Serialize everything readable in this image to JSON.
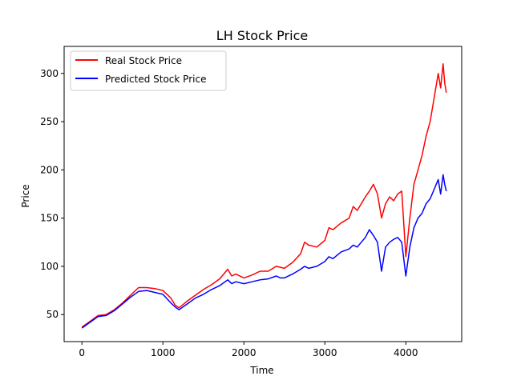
{
  "chart_data": {
    "type": "line",
    "title": "LH Stock Price",
    "xlabel": "Time",
    "ylabel": "Price",
    "xlim": [
      -220,
      4690
    ],
    "ylim": [
      22,
      328
    ],
    "xticks": [
      0,
      1000,
      2000,
      3000,
      4000
    ],
    "yticks": [
      50,
      100,
      150,
      200,
      250,
      300
    ],
    "grid": false,
    "legend_position": "top-left",
    "series": [
      {
        "name": "Real Stock Price",
        "color": "#ff0000",
        "points": [
          [
            0,
            37
          ],
          [
            100,
            43
          ],
          [
            200,
            49
          ],
          [
            300,
            50
          ],
          [
            400,
            55
          ],
          [
            500,
            62
          ],
          [
            600,
            70
          ],
          [
            700,
            78
          ],
          [
            800,
            78
          ],
          [
            900,
            77
          ],
          [
            1000,
            75
          ],
          [
            1100,
            67
          ],
          [
            1150,
            60
          ],
          [
            1200,
            57
          ],
          [
            1300,
            64
          ],
          [
            1400,
            70
          ],
          [
            1500,
            76
          ],
          [
            1600,
            81
          ],
          [
            1700,
            87
          ],
          [
            1800,
            97
          ],
          [
            1850,
            90
          ],
          [
            1900,
            92
          ],
          [
            2000,
            88
          ],
          [
            2100,
            91
          ],
          [
            2200,
            95
          ],
          [
            2300,
            95
          ],
          [
            2400,
            100
          ],
          [
            2450,
            99
          ],
          [
            2500,
            98
          ],
          [
            2600,
            104
          ],
          [
            2700,
            113
          ],
          [
            2750,
            125
          ],
          [
            2800,
            122
          ],
          [
            2900,
            120
          ],
          [
            3000,
            127
          ],
          [
            3050,
            140
          ],
          [
            3100,
            138
          ],
          [
            3200,
            145
          ],
          [
            3300,
            150
          ],
          [
            3350,
            162
          ],
          [
            3400,
            158
          ],
          [
            3450,
            165
          ],
          [
            3500,
            172
          ],
          [
            3550,
            178
          ],
          [
            3600,
            185
          ],
          [
            3650,
            175
          ],
          [
            3700,
            150
          ],
          [
            3750,
            165
          ],
          [
            3800,
            172
          ],
          [
            3850,
            168
          ],
          [
            3900,
            175
          ],
          [
            3950,
            178
          ],
          [
            4000,
            110
          ],
          [
            4050,
            150
          ],
          [
            4100,
            185
          ],
          [
            4150,
            200
          ],
          [
            4200,
            215
          ],
          [
            4250,
            235
          ],
          [
            4300,
            250
          ],
          [
            4350,
            275
          ],
          [
            4400,
            300
          ],
          [
            4430,
            285
          ],
          [
            4460,
            310
          ],
          [
            4480,
            290
          ],
          [
            4500,
            280
          ]
        ]
      },
      {
        "name": "Predicted Stock Price",
        "color": "#0000ff",
        "points": [
          [
            0,
            36
          ],
          [
            100,
            42
          ],
          [
            200,
            48
          ],
          [
            300,
            49
          ],
          [
            400,
            54
          ],
          [
            500,
            61
          ],
          [
            600,
            68
          ],
          [
            700,
            74
          ],
          [
            800,
            75
          ],
          [
            900,
            73
          ],
          [
            1000,
            71
          ],
          [
            1100,
            62
          ],
          [
            1150,
            58
          ],
          [
            1200,
            55
          ],
          [
            1300,
            61
          ],
          [
            1400,
            67
          ],
          [
            1500,
            71
          ],
          [
            1600,
            76
          ],
          [
            1700,
            80
          ],
          [
            1800,
            86
          ],
          [
            1850,
            82
          ],
          [
            1900,
            84
          ],
          [
            2000,
            82
          ],
          [
            2100,
            84
          ],
          [
            2200,
            86
          ],
          [
            2300,
            87
          ],
          [
            2400,
            90
          ],
          [
            2450,
            88
          ],
          [
            2500,
            88
          ],
          [
            2600,
            92
          ],
          [
            2700,
            97
          ],
          [
            2750,
            100
          ],
          [
            2800,
            98
          ],
          [
            2900,
            100
          ],
          [
            3000,
            105
          ],
          [
            3050,
            110
          ],
          [
            3100,
            108
          ],
          [
            3200,
            115
          ],
          [
            3300,
            118
          ],
          [
            3350,
            122
          ],
          [
            3400,
            120
          ],
          [
            3450,
            125
          ],
          [
            3500,
            130
          ],
          [
            3550,
            138
          ],
          [
            3600,
            132
          ],
          [
            3650,
            125
          ],
          [
            3700,
            95
          ],
          [
            3750,
            120
          ],
          [
            3800,
            125
          ],
          [
            3850,
            128
          ],
          [
            3900,
            130
          ],
          [
            3950,
            125
          ],
          [
            4000,
            90
          ],
          [
            4050,
            120
          ],
          [
            4100,
            140
          ],
          [
            4150,
            150
          ],
          [
            4200,
            155
          ],
          [
            4250,
            165
          ],
          [
            4300,
            170
          ],
          [
            4350,
            180
          ],
          [
            4400,
            190
          ],
          [
            4430,
            175
          ],
          [
            4460,
            195
          ],
          [
            4480,
            185
          ],
          [
            4500,
            178
          ]
        ]
      }
    ]
  }
}
